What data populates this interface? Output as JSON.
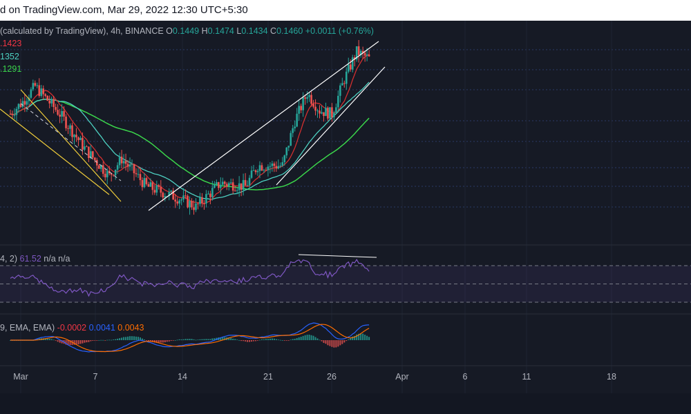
{
  "header": {
    "text": "d on TradingView.com, Mar 29, 2022 12:30 UTC+5:30"
  },
  "legend": {
    "prefix": "(calculated by TradingView), 4h, BINANCE",
    "o_label": "O",
    "o": "0.1449",
    "h_label": "H",
    "h": "0.1474",
    "l_label": "L",
    "l": "0.1434",
    "c_label": "C",
    "c": "0.1460",
    "change": "+0.0011 (+0.76%)"
  },
  "ma_labels": [
    {
      "text": ".1423",
      "color": "#f23645"
    },
    {
      "text": "1352",
      "color": "#4dd0c1"
    },
    {
      "text": ".1291",
      "color": "#3bd64b"
    }
  ],
  "rsi_legend": {
    "prefix": "4, 2)",
    "value": "61.52",
    "na": "n/a  n/a"
  },
  "macd_legend": {
    "prefix": "9, EMA, EMA)",
    "hist": "-0.0002",
    "macd": "0.0041",
    "signal": "0.0043"
  },
  "colors": {
    "background": "#161a25",
    "up": "#26a69a",
    "down": "#ef5350",
    "ma_red": "#d32f2f",
    "ma_teal": "#4dd0c1",
    "ma_green": "#3bd64b",
    "rsi": "#7e57c2",
    "macd": "#2962ff",
    "signal": "#ff6d00",
    "trendline": "#ffffff",
    "channel": "#f2cf3b"
  },
  "chart_data": {
    "type": "line",
    "x_ticks": [
      "Mar",
      "7",
      "14",
      "21",
      "26",
      "Apr",
      "6",
      "11",
      "18"
    ],
    "price_series": [
      {
        "x": "Feb 28",
        "y": 0.13
      },
      {
        "x": "Mar 1",
        "y": 0.1335
      },
      {
        "x": "Mar 2",
        "y": 0.138
      },
      {
        "x": "Mar 4",
        "y": 0.13
      },
      {
        "x": "Mar 6",
        "y": 0.12
      },
      {
        "x": "Mar 8",
        "y": 0.112
      },
      {
        "x": "Mar 9",
        "y": 0.117
      },
      {
        "x": "Mar 11",
        "y": 0.109
      },
      {
        "x": "Mar 14",
        "y": 0.105
      },
      {
        "x": "Mar 15",
        "y": 0.103
      },
      {
        "x": "Mar 17",
        "y": 0.11
      },
      {
        "x": "Mar 19",
        "y": 0.109
      },
      {
        "x": "Mar 20",
        "y": 0.115
      },
      {
        "x": "Mar 22",
        "y": 0.115
      },
      {
        "x": "Mar 23",
        "y": 0.128
      },
      {
        "x": "Mar 24",
        "y": 0.136
      },
      {
        "x": "Mar 25",
        "y": 0.131
      },
      {
        "x": "Mar 26",
        "y": 0.13
      },
      {
        "x": "Mar 27",
        "y": 0.14
      },
      {
        "x": "Mar 28",
        "y": 0.148
      },
      {
        "x": "Mar 29",
        "y": 0.146
      }
    ],
    "last_ohlc": {
      "open": 0.1449,
      "high": 0.1474,
      "low": 0.1434,
      "close": 0.146,
      "change": 0.0011,
      "change_pct": 0.76
    },
    "ma_values": [
      0.1423,
      0.1352,
      0.1291
    ],
    "rsi": {
      "value": 61.52,
      "upper_band": 70,
      "lower_band": 30
    },
    "macd": {
      "histogram": -0.0002,
      "macd": 0.0041,
      "signal": 0.0043
    }
  }
}
